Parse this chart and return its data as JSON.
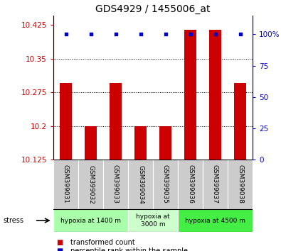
{
  "title": "GDS4929 / 1455006_at",
  "samples": [
    "GSM399031",
    "GSM399032",
    "GSM399033",
    "GSM399034",
    "GSM399035",
    "GSM399036",
    "GSM399037",
    "GSM399038"
  ],
  "red_values": [
    10.295,
    10.2,
    10.295,
    10.2,
    10.2,
    10.415,
    10.415,
    10.295
  ],
  "blue_values": [
    100,
    100,
    100,
    100,
    100,
    100,
    100,
    100
  ],
  "ymin": 10.125,
  "ymax": 10.425,
  "yticks": [
    10.125,
    10.2,
    10.275,
    10.35,
    10.425
  ],
  "ytick_labels": [
    "10.125",
    "10.2",
    "10.275",
    "10.35",
    "10.425"
  ],
  "y2min": 0,
  "y2max": 100,
  "y2ticks": [
    0,
    25,
    50,
    75,
    100
  ],
  "y2tick_labels": [
    "0",
    "25",
    "50",
    "75",
    "100%"
  ],
  "groups": [
    {
      "label": "hypoxia at 1400 m",
      "start": 0,
      "end": 3,
      "color": "#aaffaa"
    },
    {
      "label": "hypoxia at\n3000 m",
      "start": 3,
      "end": 5,
      "color": "#ccffcc"
    },
    {
      "label": "hypoxia at 4500 m",
      "start": 5,
      "end": 8,
      "color": "#44ee44"
    }
  ],
  "stress_label": "stress",
  "bar_color": "#cc0000",
  "dot_color": "#0000cc",
  "bar_width": 0.5,
  "grid_color": "#000000",
  "sample_box_color": "#cccccc",
  "legend_red": "transformed count",
  "legend_blue": "percentile rank within the sample",
  "title_fontsize": 10,
  "axis_label_color_red": "#cc0000",
  "axis_label_color_blue": "#0000cc"
}
